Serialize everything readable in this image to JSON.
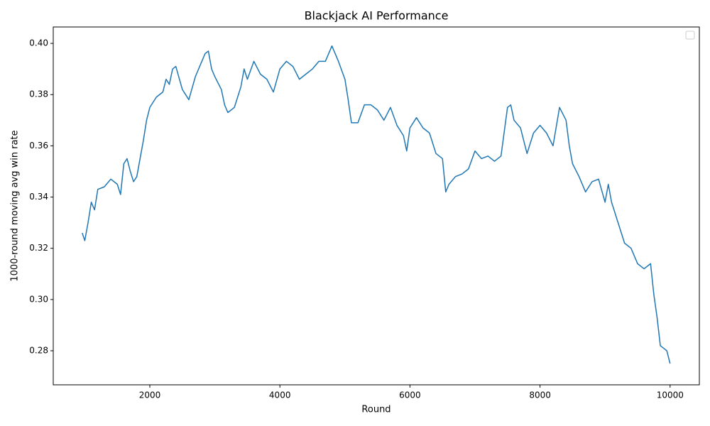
{
  "chart_data": {
    "type": "line",
    "title": "Blackjack AI Performance",
    "x_label": "Round",
    "y_label": "1000-round moving avg win rate",
    "x": [
      960,
      1000,
      1050,
      1100,
      1150,
      1200,
      1300,
      1400,
      1500,
      1550,
      1600,
      1650,
      1700,
      1750,
      1800,
      1850,
      1900,
      1950,
      2000,
      2100,
      2200,
      2250,
      2300,
      2350,
      2400,
      2500,
      2600,
      2700,
      2800,
      2850,
      2900,
      2950,
      3000,
      3100,
      3150,
      3200,
      3300,
      3400,
      3450,
      3500,
      3600,
      3700,
      3800,
      3900,
      4000,
      4100,
      4200,
      4300,
      4400,
      4500,
      4600,
      4700,
      4800,
      4900,
      5000,
      5050,
      5100,
      5200,
      5300,
      5400,
      5500,
      5600,
      5700,
      5800,
      5900,
      5950,
      6000,
      6100,
      6200,
      6300,
      6400,
      6500,
      6550,
      6600,
      6700,
      6800,
      6900,
      7000,
      7100,
      7200,
      7300,
      7400,
      7500,
      7550,
      7600,
      7700,
      7800,
      7900,
      8000,
      8100,
      8200,
      8300,
      8400,
      8450,
      8500,
      8600,
      8700,
      8800,
      8900,
      9000,
      9050,
      9100,
      9200,
      9300,
      9400,
      9500,
      9600,
      9700,
      9750,
      9800,
      9850,
      9900,
      9950,
      10000
    ],
    "series": [
      {
        "color": "#1f77b4",
        "values": [
          0.326,
          0.323,
          0.33,
          0.338,
          0.335,
          0.343,
          0.344,
          0.347,
          0.345,
          0.341,
          0.353,
          0.355,
          0.35,
          0.346,
          0.348,
          0.355,
          0.362,
          0.37,
          0.375,
          0.379,
          0.381,
          0.386,
          0.384,
          0.39,
          0.391,
          0.382,
          0.378,
          0.387,
          0.393,
          0.396,
          0.397,
          0.39,
          0.387,
          0.382,
          0.376,
          0.373,
          0.375,
          0.383,
          0.39,
          0.386,
          0.393,
          0.388,
          0.386,
          0.381,
          0.39,
          0.393,
          0.391,
          0.386,
          0.388,
          0.39,
          0.393,
          0.393,
          0.399,
          0.393,
          0.386,
          0.378,
          0.369,
          0.369,
          0.376,
          0.376,
          0.374,
          0.37,
          0.375,
          0.368,
          0.364,
          0.358,
          0.367,
          0.371,
          0.367,
          0.365,
          0.357,
          0.355,
          0.342,
          0.345,
          0.348,
          0.349,
          0.351,
          0.358,
          0.355,
          0.356,
          0.354,
          0.356,
          0.375,
          0.376,
          0.37,
          0.367,
          0.357,
          0.365,
          0.368,
          0.365,
          0.36,
          0.375,
          0.37,
          0.36,
          0.353,
          0.348,
          0.342,
          0.346,
          0.347,
          0.338,
          0.345,
          0.338,
          0.33,
          0.322,
          0.32,
          0.314,
          0.312,
          0.314,
          0.302,
          0.293,
          0.282,
          0.281,
          0.28,
          0.275
        ]
      }
    ],
    "xlim": [
      515,
      10450
    ],
    "ylim": [
      0.2667,
      0.4064
    ],
    "xticks": [
      2000,
      4000,
      6000,
      8000,
      10000
    ],
    "yticks": [
      0.28,
      {
        "value": 0.3,
        "label": "0.30"
      },
      0.32,
      0.34,
      0.36,
      0.38,
      {
        "value": 0.4,
        "label": "0.40"
      }
    ]
  }
}
